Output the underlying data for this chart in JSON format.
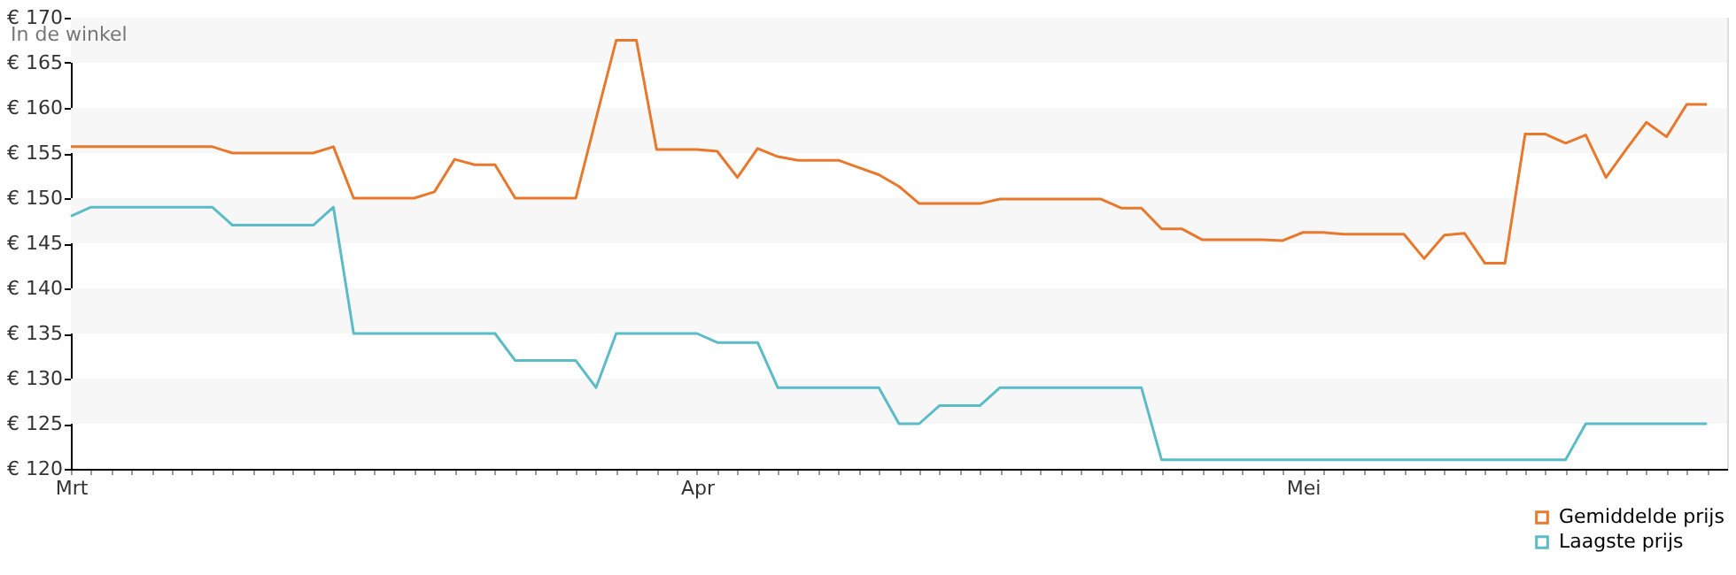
{
  "chart_data": {
    "type": "line",
    "annotations": [
      "In de winkel"
    ],
    "categories": [
      "Mrt",
      null,
      null,
      null,
      null,
      null,
      null,
      null,
      null,
      null,
      null,
      null,
      null,
      null,
      null,
      null,
      null,
      null,
      null,
      null,
      null,
      null,
      null,
      null,
      null,
      null,
      null,
      null,
      null,
      null,
      null,
      "Apr",
      null,
      null,
      null,
      null,
      null,
      null,
      null,
      null,
      null,
      null,
      null,
      null,
      null,
      null,
      null,
      null,
      null,
      null,
      null,
      null,
      null,
      null,
      null,
      null,
      null,
      null,
      null,
      null,
      null,
      "Mei",
      null,
      null,
      null,
      null,
      null,
      null,
      null,
      null,
      null,
      null,
      null,
      null,
      null,
      null,
      null,
      null,
      null,
      null,
      null,
      null
    ],
    "ylim": [
      120,
      170
    ],
    "yticks": [
      {
        "value": 120,
        "label": "€ 120"
      },
      {
        "value": 125,
        "label": "€ 125"
      },
      {
        "value": 130,
        "label": "€ 130"
      },
      {
        "value": 135,
        "label": "€ 135"
      },
      {
        "value": 140,
        "label": "€ 140"
      },
      {
        "value": 145,
        "label": "€ 145"
      },
      {
        "value": 150,
        "label": "€ 150"
      },
      {
        "value": 155,
        "label": "€ 155"
      },
      {
        "value": 160,
        "label": "€ 160"
      },
      {
        "value": 165,
        "label": "€ 165"
      },
      {
        "value": 170,
        "label": "€ 170"
      }
    ],
    "bands": [
      {
        "axis": "y",
        "from": 125,
        "to": 130,
        "color": "#f7f7f7"
      },
      {
        "axis": "y",
        "from": 135,
        "to": 140,
        "color": "#f7f7f7"
      },
      {
        "axis": "y",
        "from": 145,
        "to": 150,
        "color": "#f7f7f7"
      },
      {
        "axis": "y",
        "from": 155,
        "to": 160,
        "color": "#f7f7f7"
      },
      {
        "axis": "y",
        "from": 165,
        "to": 170,
        "color": "#f7f7f7"
      }
    ],
    "legend": "bottom right",
    "line_style": "solid",
    "series": [
      {
        "name": "Gemiddelde prijs",
        "color": "#e8782b",
        "values": [
          155.7,
          155.7,
          155.7,
          155.7,
          155.7,
          155.7,
          155.7,
          155.7,
          155,
          155,
          155,
          155,
          155,
          155.7,
          150,
          150,
          150,
          150,
          150.7,
          154.3,
          153.7,
          153.7,
          150,
          150,
          150,
          150,
          158.8,
          167.5,
          167.5,
          155.4,
          155.4,
          155.4,
          155.2,
          152.3,
          155.5,
          154.6,
          154.2,
          154.2,
          154.2,
          153.4,
          152.6,
          151.3,
          149.4,
          149.4,
          149.4,
          149.4,
          149.9,
          149.9,
          149.9,
          149.9,
          149.9,
          149.9,
          148.9,
          148.9,
          146.6,
          146.6,
          145.4,
          145.4,
          145.4,
          145.4,
          145.3,
          146.2,
          146.2,
          146,
          146,
          146,
          146,
          143.3,
          145.9,
          146.1,
          142.8,
          142.8,
          157.1,
          157.1,
          156.1,
          157,
          152.3,
          155.4,
          158.4,
          156.8,
          160.4,
          160.4
        ]
      },
      {
        "name": "Laagste prijs",
        "color": "#5bbcc8",
        "values": [
          148,
          149,
          149,
          149,
          149,
          149,
          149,
          149,
          147,
          147,
          147,
          147,
          147,
          149,
          135,
          135,
          135,
          135,
          135,
          135,
          135,
          135,
          132,
          132,
          132,
          132,
          129,
          135,
          135,
          135,
          135,
          135,
          134,
          134,
          134,
          129,
          129,
          129,
          129,
          129,
          129,
          125,
          125,
          127,
          127,
          127,
          129,
          129,
          129,
          129,
          129,
          129,
          129,
          129,
          121,
          121,
          121,
          121,
          121,
          121,
          121,
          121,
          121,
          121,
          121,
          121,
          121,
          121,
          121,
          121,
          121,
          121,
          121,
          121,
          121,
          125,
          125,
          125,
          125,
          125,
          125,
          125
        ]
      }
    ]
  }
}
